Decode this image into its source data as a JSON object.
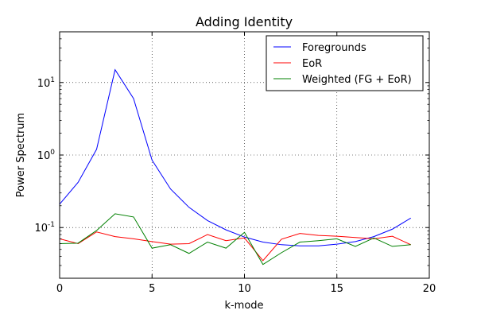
{
  "chart_data": {
    "type": "line",
    "title": "Adding Identity",
    "xlabel": "k-mode",
    "ylabel": "Power Spectrum",
    "xlim": [
      0,
      20
    ],
    "ylim": [
      0.02,
      50
    ],
    "yscale": "log",
    "grid": true,
    "legend_position": "top-right",
    "x_ticks": [
      {
        "value": 0,
        "label": "0"
      },
      {
        "value": 5,
        "label": "5"
      },
      {
        "value": 10,
        "label": "10"
      },
      {
        "value": 15,
        "label": "15"
      },
      {
        "value": 20,
        "label": "20"
      }
    ],
    "y_ticks": [
      {
        "value": 0.1,
        "base": "10",
        "exp": "-1"
      },
      {
        "value": 1,
        "base": "10",
        "exp": "0"
      },
      {
        "value": 10,
        "base": "10",
        "exp": "1"
      }
    ],
    "x": [
      0,
      1,
      2,
      3,
      4,
      5,
      6,
      7,
      8,
      9,
      10,
      11,
      12,
      13,
      14,
      15,
      16,
      17,
      18,
      19
    ],
    "series": [
      {
        "name": "Foregrounds",
        "color": "#0000ff",
        "values": [
          0.21,
          0.42,
          1.2,
          15,
          6,
          0.85,
          0.34,
          0.19,
          0.125,
          0.093,
          0.074,
          0.063,
          0.058,
          0.056,
          0.056,
          0.059,
          0.064,
          0.075,
          0.095,
          0.135
        ]
      },
      {
        "name": "EoR",
        "color": "#ff0000",
        "values": [
          0.07,
          0.06,
          0.087,
          0.075,
          0.07,
          0.064,
          0.059,
          0.06,
          0.08,
          0.066,
          0.072,
          0.035,
          0.069,
          0.083,
          0.078,
          0.076,
          0.073,
          0.07,
          0.076,
          0.058
        ]
      },
      {
        "name": "Weighted (FG + EoR)",
        "color": "#008000",
        "values": [
          0.06,
          0.061,
          0.091,
          0.155,
          0.14,
          0.052,
          0.058,
          0.044,
          0.063,
          0.052,
          0.086,
          0.031,
          0.045,
          0.063,
          0.066,
          0.07,
          0.055,
          0.072,
          0.055,
          0.058
        ]
      }
    ]
  }
}
